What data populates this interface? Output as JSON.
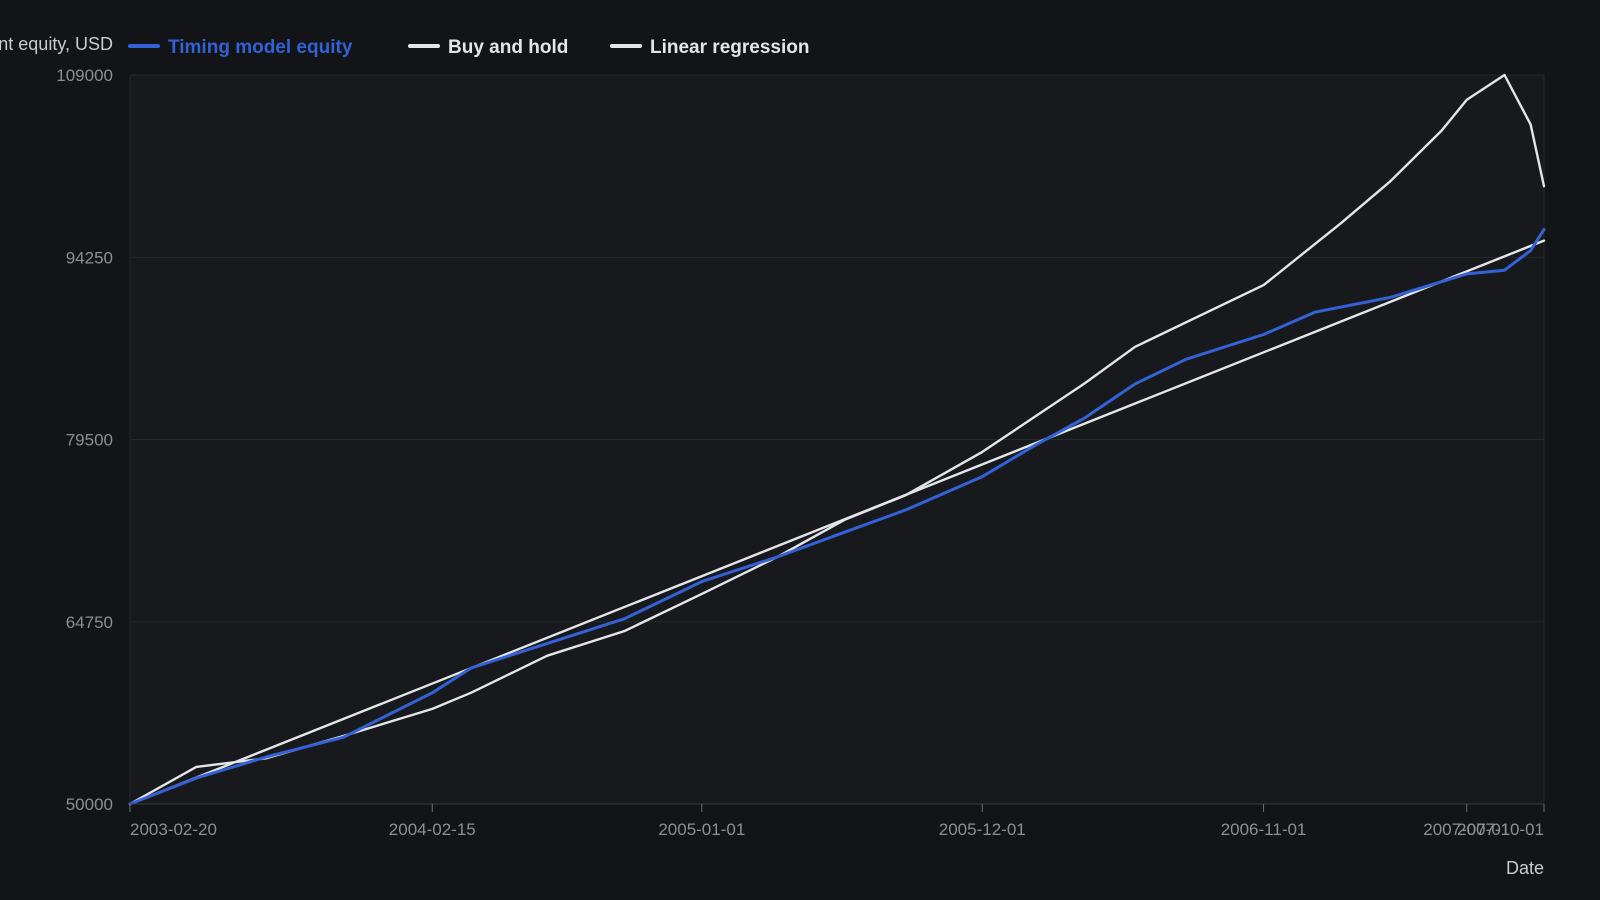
{
  "chart_data": {
    "type": "line",
    "ylabel": "Account equity, USD",
    "xlabel": "Date",
    "ylim": [
      50000,
      109000
    ],
    "yticks": [
      "50000",
      "64750",
      "79500",
      "94250",
      "109000"
    ],
    "x_ticks": [
      "2003-02-20",
      "2004-02-15",
      "2005-01-01",
      "2005-12-01",
      "2006-11-01",
      "2007-07-01",
      "2007-10-01"
    ],
    "xlim": [
      "2003-02-20",
      "2007-10-01"
    ],
    "grid": true,
    "legend_placement": "top-left",
    "series": [
      {
        "name": "Timing model equity",
        "color": "#3262d6",
        "points": [
          [
            "2003-02-20",
            50000
          ],
          [
            "2003-05-10",
            52100
          ],
          [
            "2003-08-01",
            53800
          ],
          [
            "2003-11-01",
            55400
          ],
          [
            "2004-02-15",
            59000
          ],
          [
            "2004-04-01",
            61000
          ],
          [
            "2004-07-01",
            63000
          ],
          [
            "2004-10-01",
            65000
          ],
          [
            "2005-01-01",
            68000
          ],
          [
            "2005-04-01",
            70000
          ],
          [
            "2005-06-20",
            72000
          ],
          [
            "2005-09-01",
            73800
          ],
          [
            "2005-12-01",
            76500
          ],
          [
            "2006-02-01",
            79000
          ],
          [
            "2006-04-01",
            81200
          ],
          [
            "2006-06-01",
            84000
          ],
          [
            "2006-08-01",
            86000
          ],
          [
            "2006-11-01",
            88000
          ],
          [
            "2007-01-01",
            89800
          ],
          [
            "2007-04-01",
            91000
          ],
          [
            "2007-07-01",
            92900
          ],
          [
            "2007-08-15",
            93200
          ],
          [
            "2007-09-15",
            94800
          ],
          [
            "2007-10-01",
            96500
          ]
        ]
      },
      {
        "name": "Buy and hold",
        "color": "#e3e5e8",
        "points": [
          [
            "2003-02-20",
            50000
          ],
          [
            "2003-05-10",
            53000
          ],
          [
            "2003-08-01",
            53700
          ],
          [
            "2003-11-01",
            55500
          ],
          [
            "2004-02-15",
            57700
          ],
          [
            "2004-04-01",
            59000
          ],
          [
            "2004-07-01",
            62000
          ],
          [
            "2004-10-01",
            64000
          ],
          [
            "2005-01-01",
            67000
          ],
          [
            "2005-04-01",
            70000
          ],
          [
            "2005-06-20",
            73000
          ],
          [
            "2005-09-01",
            75000
          ],
          [
            "2005-12-01",
            78500
          ],
          [
            "2006-04-01",
            84000
          ],
          [
            "2006-06-01",
            87000
          ],
          [
            "2006-11-01",
            92000
          ],
          [
            "2007-02-01",
            97000
          ],
          [
            "2007-04-01",
            100400
          ],
          [
            "2007-06-01",
            104500
          ],
          [
            "2007-07-01",
            107000
          ],
          [
            "2007-08-15",
            109000
          ],
          [
            "2007-09-15",
            105000
          ],
          [
            "2007-10-01",
            100000
          ]
        ]
      },
      {
        "name": "Linear regression",
        "color": "#e3e5e8",
        "points": [
          [
            "2003-02-20",
            50000
          ],
          [
            "2007-10-01",
            95600
          ]
        ]
      }
    ]
  }
}
